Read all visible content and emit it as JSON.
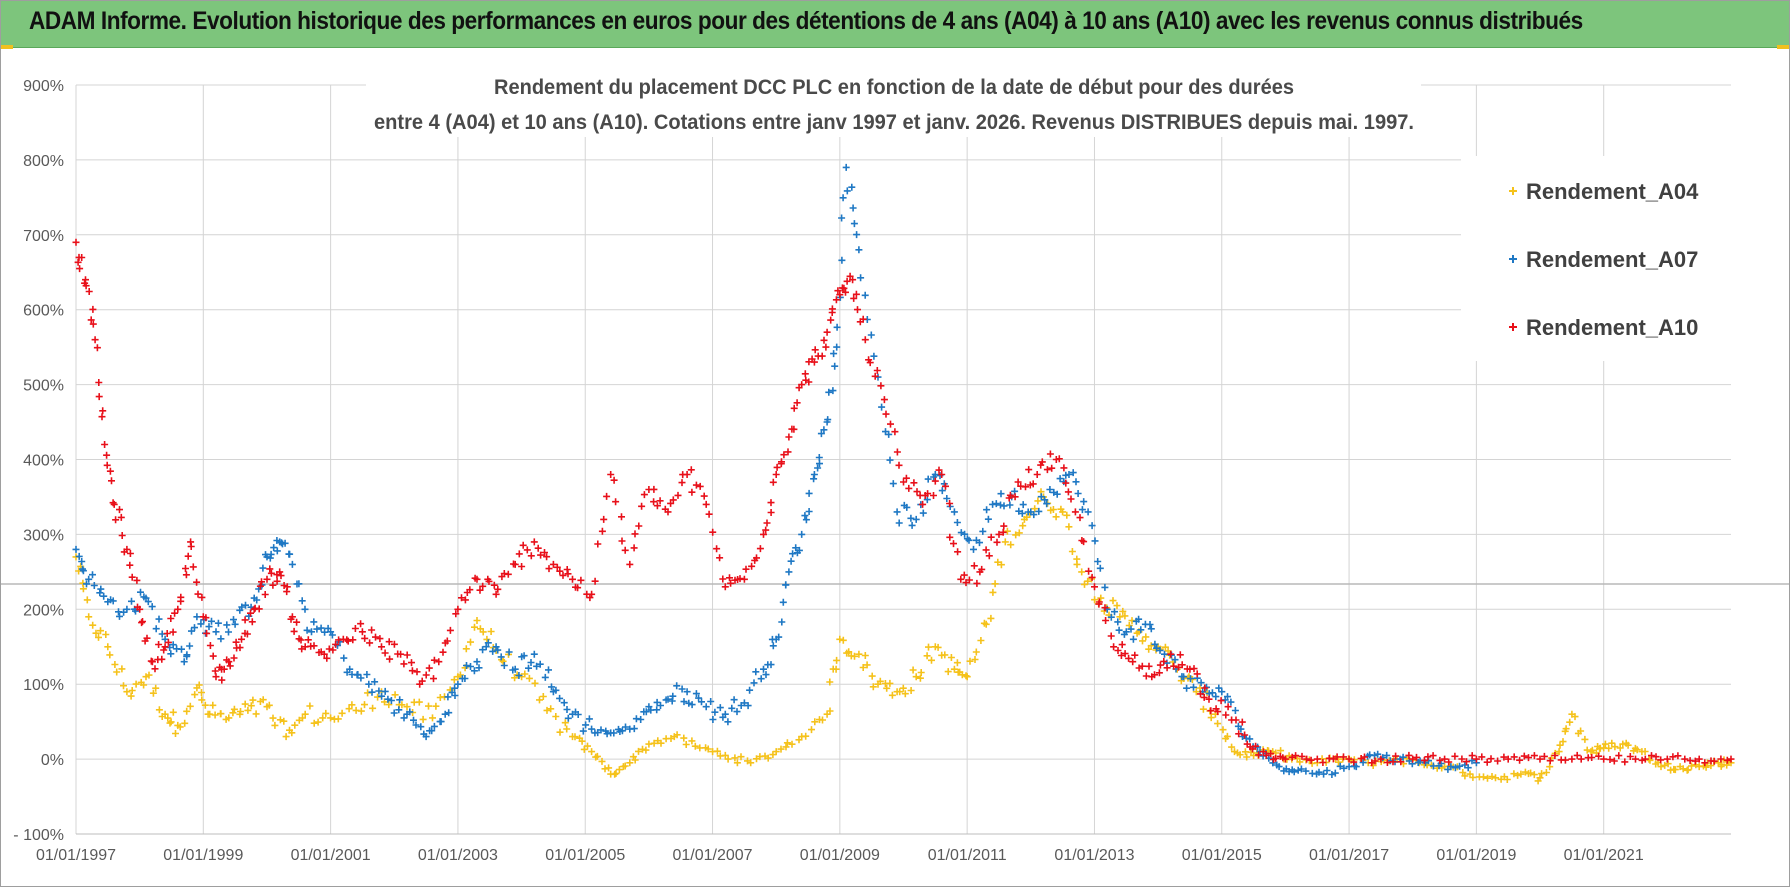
{
  "banner": {
    "title": "ADAM Informe. Evolution historique des performances en euros pour des détentions de 4 ans (A04) à 10 ans (A10) avec les revenus connus distribués"
  },
  "chart_data": {
    "type": "scatter",
    "title_line1": "Rendement du placement DCC PLC en fonction de la date de début pour des durées",
    "title_line2": "entre 4 (A04) et 10 ans (A10).  Cotations entre janv 1997 et janv. 2026. Revenus DISTRIBUES depuis mai. 1997.",
    "xlabel": "",
    "ylabel": "",
    "x_range": [
      1997.0,
      2023.0
    ],
    "ylim": [
      -100,
      900
    ],
    "y_ticks": [
      -100,
      0,
      100,
      200,
      300,
      400,
      500,
      600,
      700,
      800,
      900
    ],
    "y_tick_labels": [
      "- 100%",
      "0%",
      "100%",
      "200%",
      "300%",
      "400%",
      "500%",
      "600%",
      "700%",
      "800%",
      "900%"
    ],
    "x_ticks": [
      1997,
      1999,
      2001,
      2003,
      2005,
      2007,
      2009,
      2011,
      2013,
      2015,
      2017,
      2019,
      2021
    ],
    "x_tick_labels": [
      "01/01/1997",
      "01/01/1999",
      "01/01/2001",
      "01/01/2003",
      "01/01/2005",
      "01/01/2007",
      "01/01/2009",
      "01/01/2011",
      "01/01/2013",
      "01/01/2015",
      "01/01/2017",
      "01/01/2019",
      "01/01/2021"
    ],
    "grid": true,
    "legend_position": "top-right",
    "marker": "+",
    "series": [
      {
        "name": "Rendement_A04",
        "color": "#f5c21b",
        "x": [
          1997.0,
          1997.2,
          1997.5,
          1997.8,
          1998.1,
          1998.4,
          1998.6,
          1998.9,
          1999.1,
          1999.4,
          1999.7,
          2000.0,
          2000.3,
          2000.6,
          2001.0,
          2001.4,
          2001.8,
          2002.2,
          2002.6,
          2003.0,
          2003.3,
          2003.6,
          2004.0,
          2004.4,
          2004.8,
          2005.1,
          2005.4,
          2005.7,
          2006.0,
          2006.4,
          2006.8,
          2007.2,
          2007.6,
          2008.0,
          2008.4,
          2008.8,
          2009.0,
          2009.3,
          2009.6,
          2009.9,
          2010.2,
          2010.5,
          2010.8,
          2011.0,
          2011.3,
          2011.6,
          2011.9,
          2012.2,
          2012.5,
          2012.8,
          2013.1,
          2013.4,
          2013.7,
          2014.0,
          2014.3,
          2014.6,
          2014.9,
          2015.2,
          2015.5,
          2015.8,
          2016.1,
          2016.5,
          2016.9,
          2017.3,
          2017.7,
          2018.1,
          2018.5,
          2018.9,
          2019.3,
          2019.7,
          2020.0,
          2020.3,
          2020.5,
          2020.8,
          2021.0,
          2021.3,
          2021.6,
          2021.9,
          2022.2,
          2022.5,
          2022.8,
          2023.0
        ],
        "y": [
          270,
          190,
          150,
          90,
          110,
          60,
          45,
          95,
          60,
          55,
          65,
          70,
          30,
          60,
          55,
          65,
          90,
          70,
          55,
          110,
          185,
          145,
          110,
          65,
          30,
          10,
          -20,
          -5,
          20,
          30,
          15,
          5,
          -5,
          10,
          30,
          60,
          160,
          140,
          100,
          90,
          110,
          150,
          120,
          110,
          180,
          290,
          320,
          350,
          330,
          250,
          215,
          190,
          170,
          150,
          120,
          90,
          60,
          10,
          5,
          10,
          0,
          -5,
          0,
          -5,
          0,
          -5,
          -10,
          -20,
          -25,
          -20,
          -25,
          10,
          60,
          10,
          15,
          20,
          10,
          -10,
          -10,
          -10,
          -5,
          -5
        ]
      },
      {
        "name": "Rendement_A07",
        "color": "#1f78c4",
        "x": [
          1997.0,
          1997.2,
          1997.5,
          1997.8,
          1998.1,
          1998.4,
          1998.7,
          1998.9,
          1999.2,
          1999.5,
          1999.8,
          2000.0,
          2000.2,
          2000.4,
          2000.7,
          2001.0,
          2001.3,
          2001.6,
          2001.9,
          2002.2,
          2002.5,
          2002.8,
          2003.0,
          2003.3,
          2003.6,
          2003.9,
          2004.2,
          2004.5,
          2004.8,
          2005.1,
          2005.4,
          2005.7,
          2006.0,
          2006.3,
          2006.6,
          2006.9,
          2007.2,
          2007.5,
          2007.8,
          2008.0,
          2008.2,
          2008.4,
          2008.6,
          2008.8,
          2008.95,
          2009.1,
          2009.3,
          2009.6,
          2009.9,
          2010.2,
          2010.5,
          2010.8,
          2011.1,
          2011.4,
          2011.7,
          2012.0,
          2012.3,
          2012.6,
          2012.9,
          2013.2,
          2013.5,
          2013.8,
          2014.1,
          2014.4,
          2014.7,
          2015.0,
          2015.3,
          2015.6,
          2015.9,
          2016.2,
          2016.6,
          2017.0,
          2017.4,
          2017.8,
          2018.2,
          2018.6,
          2019.0
        ],
        "y": [
          280,
          240,
          210,
          200,
          215,
          160,
          130,
          190,
          170,
          180,
          215,
          270,
          290,
          260,
          170,
          170,
          120,
          100,
          80,
          60,
          30,
          60,
          100,
          130,
          150,
          120,
          140,
          90,
          60,
          40,
          35,
          40,
          70,
          80,
          90,
          70,
          60,
          75,
          120,
          160,
          250,
          300,
          380,
          450,
          550,
          790,
          680,
          510,
          330,
          320,
          380,
          330,
          280,
          340,
          350,
          330,
          360,
          380,
          330,
          200,
          170,
          180,
          140,
          110,
          90,
          90,
          40,
          10,
          -10,
          -15,
          -20,
          -10,
          5,
          0,
          -5,
          -10,
          -5
        ]
      },
      {
        "name": "Rendement_A10",
        "color": "#e8101a",
        "x": [
          1997.0,
          1997.15,
          1997.3,
          1997.45,
          1997.6,
          1997.8,
          1998.0,
          1998.2,
          1998.4,
          1998.6,
          1998.8,
          1999.0,
          1999.2,
          1999.4,
          1999.6,
          1999.8,
          2000.0,
          2000.2,
          2000.4,
          2000.6,
          2000.9,
          2001.2,
          2001.5,
          2001.8,
          2002.1,
          2002.4,
          2002.7,
          2003.0,
          2003.3,
          2003.6,
          2003.9,
          2004.2,
          2004.5,
          2004.8,
          2005.1,
          2005.4,
          2005.7,
          2006.0,
          2006.3,
          2006.6,
          2006.9,
          2007.2,
          2007.5,
          2007.8,
          2008.0,
          2008.2,
          2008.4,
          2008.6,
          2008.8,
          2009.0,
          2009.2,
          2009.4,
          2009.7,
          2010.0,
          2010.3,
          2010.6,
          2010.9,
          2011.2,
          2011.5,
          2011.8,
          2012.1,
          2012.4,
          2012.7,
          2013.0,
          2013.3,
          2013.6,
          2013.9,
          2014.2,
          2014.5,
          2014.8,
          2015.1,
          2015.4,
          2015.7,
          2016.0,
          2016.5,
          2017.0,
          2017.5,
          2018.0,
          2018.5,
          2019.0,
          2019.5,
          2020.0,
          2020.5,
          2021.0,
          2021.5,
          2022.0,
          2022.5,
          2023.0
        ],
        "y": [
          690,
          640,
          560,
          420,
          340,
          280,
          200,
          130,
          150,
          200,
          290,
          190,
          110,
          130,
          160,
          200,
          240,
          250,
          190,
          150,
          140,
          160,
          170,
          150,
          140,
          100,
          130,
          200,
          240,
          220,
          260,
          290,
          260,
          240,
          220,
          380,
          260,
          360,
          330,
          380,
          340,
          230,
          240,
          300,
          380,
          430,
          500,
          530,
          570,
          620,
          640,
          560,
          480,
          370,
          340,
          380,
          240,
          250,
          300,
          370,
          380,
          400,
          330,
          230,
          150,
          130,
          110,
          140,
          120,
          80,
          70,
          20,
          5,
          0,
          0,
          0,
          0,
          0,
          0,
          0,
          0,
          0,
          0,
          0,
          0,
          0,
          0,
          0
        ]
      }
    ]
  }
}
